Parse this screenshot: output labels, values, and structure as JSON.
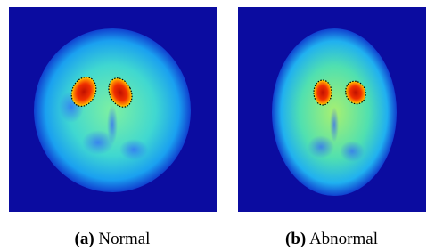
{
  "panels": [
    {
      "label": "(a)",
      "caption": "Normal"
    },
    {
      "label": "(b)",
      "caption": "Abnormal"
    }
  ]
}
